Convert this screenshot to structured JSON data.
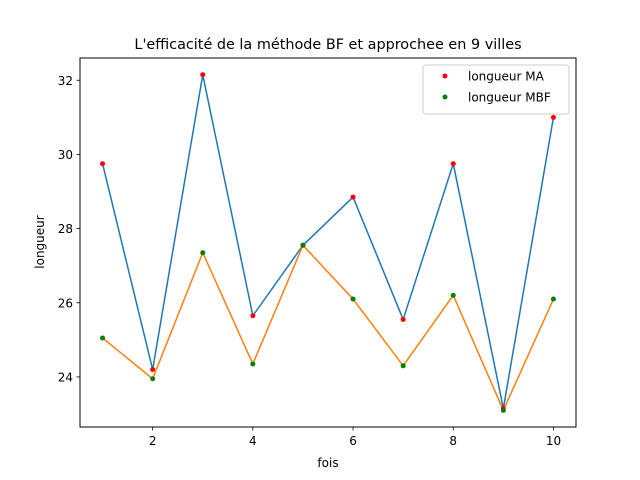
{
  "chart_data": {
    "type": "line",
    "title": "L'efficacité de la méthode BF et approchee en 9 villes",
    "xlabel": "fois",
    "ylabel": "longueur",
    "xlim": [
      0.55,
      10.45
    ],
    "ylim": [
      22.65,
      32.6
    ],
    "xticks": [
      2,
      4,
      6,
      8,
      10
    ],
    "yticks": [
      24,
      26,
      28,
      30,
      32
    ],
    "grid": false,
    "legend_position": "top-right",
    "x": [
      1,
      2,
      3,
      4,
      5,
      6,
      7,
      8,
      9,
      10
    ],
    "series": [
      {
        "name": "longueur MA",
        "line_color": "#1f77b4",
        "marker_color": "#ff0000",
        "values": [
          29.75,
          24.2,
          32.15,
          25.65,
          27.55,
          28.85,
          25.55,
          29.75,
          23.15,
          31.0
        ]
      },
      {
        "name": "longueur MBF",
        "line_color": "#ff7f0e",
        "marker_color": "#008000",
        "values": [
          25.05,
          23.95,
          27.35,
          24.35,
          27.55,
          26.1,
          24.3,
          26.2,
          23.1,
          26.1
        ]
      }
    ]
  }
}
